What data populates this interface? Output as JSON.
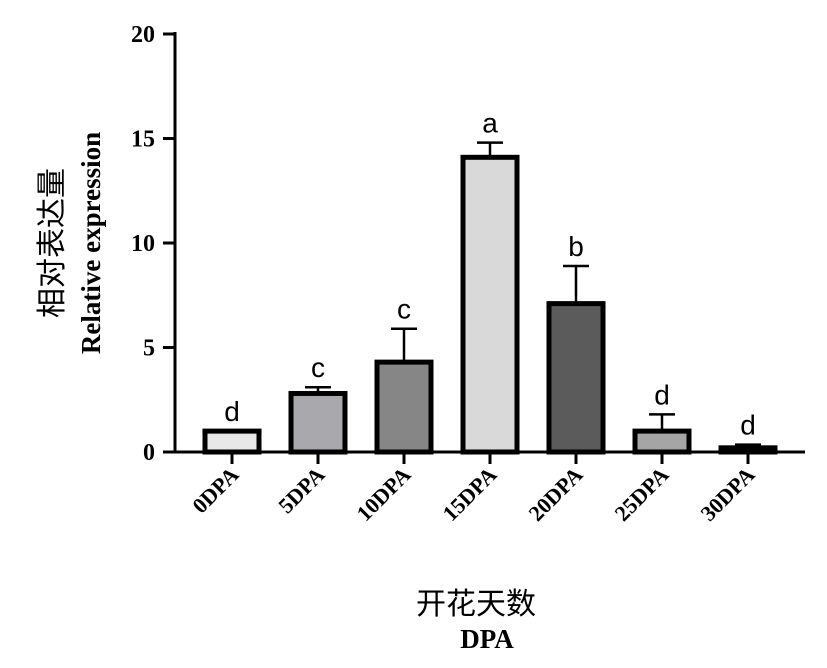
{
  "chart_data": {
    "type": "bar",
    "categories": [
      "0DPA",
      "5DPA",
      "10DPA",
      "15DPA",
      "20DPA",
      "25DPA",
      "30DPA"
    ],
    "values": [
      1.0,
      2.8,
      4.3,
      14.1,
      7.1,
      1.0,
      0.2
    ],
    "errors": [
      0.0,
      0.3,
      1.6,
      0.7,
      1.8,
      0.8,
      0.15
    ],
    "significance": [
      "d",
      "c",
      "c",
      "a",
      "b",
      "d",
      "d"
    ],
    "bar_colors": [
      "#e8e8e8",
      "#a9a9ad",
      "#868686",
      "#d9d9d9",
      "#5b5b5b",
      "#a5a5a5",
      "#9a9a9a"
    ],
    "ylim": [
      0,
      20
    ],
    "yticks": [
      0,
      5,
      10,
      15,
      20
    ],
    "ylabel_cn": "相对表达量",
    "ylabel_en": "Relative expression",
    "xlabel_cn": "开花天数",
    "xlabel_en": "DPA",
    "grid": false,
    "legend": "none"
  }
}
